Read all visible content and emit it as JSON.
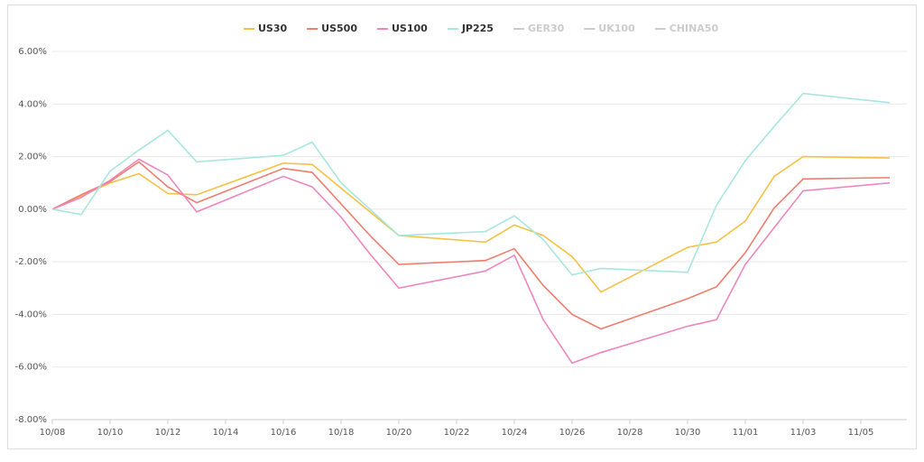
{
  "chart_data": {
    "type": "line",
    "x": [
      "10/08",
      "10/09",
      "10/10",
      "10/11",
      "10/12",
      "10/13",
      "10/16",
      "10/17",
      "10/18",
      "10/19",
      "10/20",
      "10/23",
      "10/24",
      "10/25",
      "10/26",
      "10/27",
      "10/30",
      "10/31",
      "11/01",
      "11/02",
      "11/03",
      "11/06"
    ],
    "series": [
      {
        "name": "US30",
        "color": "#f5c144",
        "values": [
          0,
          0.5,
          1.0,
          1.35,
          0.6,
          0.55,
          1.75,
          1.7,
          0.8,
          -0.1,
          -1.0,
          -1.25,
          -0.6,
          -1.0,
          -1.8,
          -3.15,
          -1.45,
          -1.25,
          -0.45,
          1.25,
          2.0,
          1.95
        ]
      },
      {
        "name": "US500",
        "color": "#ee7e6e",
        "values": [
          0,
          0.55,
          1.05,
          1.8,
          0.85,
          0.25,
          1.55,
          1.4,
          0.2,
          -1.0,
          -2.1,
          -1.95,
          -1.5,
          -2.9,
          -4.0,
          -4.55,
          -3.4,
          -2.95,
          -1.65,
          0.05,
          1.15,
          1.2
        ]
      },
      {
        "name": "US100",
        "color": "#ee86bc",
        "values": [
          0,
          0.45,
          1.1,
          1.9,
          1.3,
          -0.1,
          1.25,
          0.85,
          -0.3,
          -1.7,
          -3.0,
          -2.35,
          -1.75,
          -4.2,
          -5.85,
          -5.45,
          -4.45,
          -4.2,
          -2.1,
          -0.7,
          0.7,
          1.0
        ]
      },
      {
        "name": "JP225",
        "color": "#a8e6e0",
        "values": [
          0,
          -0.2,
          1.45,
          2.25,
          3.0,
          1.8,
          2.05,
          2.55,
          1.0,
          0.0,
          -1.0,
          -0.85,
          -0.25,
          -1.15,
          -2.5,
          -2.25,
          -2.4,
          0.15,
          1.85,
          3.15,
          4.4,
          4.05
        ]
      }
    ],
    "legend_inactive": [
      "GER30",
      "UK100",
      "CHINA50"
    ],
    "inactive_color": "#cccccc",
    "ylim": [
      -8,
      6
    ],
    "yticks": [
      {
        "value": -8,
        "label": "-8.00%"
      },
      {
        "value": -6,
        "label": "-6.00%"
      },
      {
        "value": -4,
        "label": "-4.00%"
      },
      {
        "value": -2,
        "label": "-2.00%"
      },
      {
        "value": 0,
        "label": "0.00%"
      },
      {
        "value": 2,
        "label": "2.00%"
      },
      {
        "value": 4,
        "label": "4.00%"
      },
      {
        "value": 6,
        "label": "6.00%"
      }
    ],
    "xticks": [
      "10/08",
      "10/10",
      "10/12",
      "10/14",
      "10/16",
      "10/18",
      "10/20",
      "10/22",
      "10/24",
      "10/26",
      "10/28",
      "10/30",
      "11/01",
      "11/03",
      "11/05"
    ],
    "grid": true,
    "legend": "top"
  }
}
